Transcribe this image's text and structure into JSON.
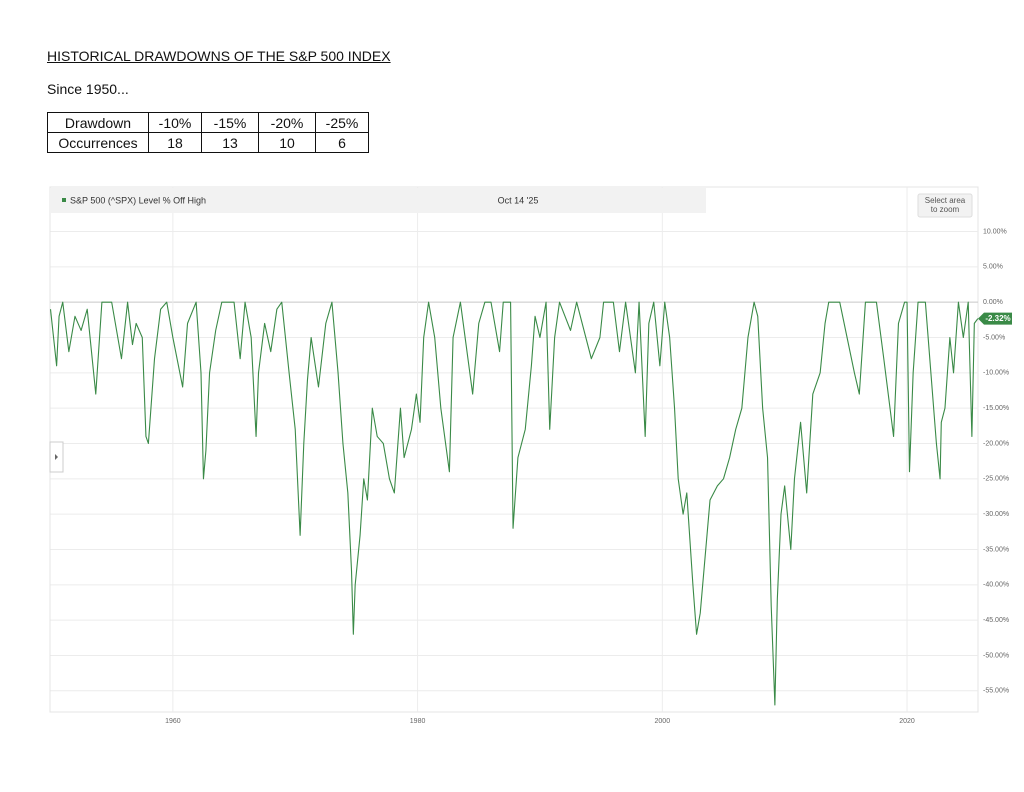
{
  "header": {
    "title": "HISTORICAL DRAWDOWNS OF THE S&P 500 INDEX",
    "subtitle": "Since 1950..."
  },
  "table": {
    "rows": [
      [
        "Drawdown",
        "-10%",
        "-15%",
        "-20%",
        "-25%"
      ],
      [
        "Occurrences",
        18,
        13,
        10,
        6
      ]
    ]
  },
  "chart_data": {
    "type": "line",
    "date_label": "Oct 14 '25",
    "zoom_hint": "Select area to zoom",
    "current_label": "-2.32%",
    "x": [
      1950.0,
      1950.5,
      1950.7,
      1951.0,
      1951.5,
      1952.0,
      1952.5,
      1953.0,
      1953.7,
      1954.2,
      1955.0,
      1955.8,
      1956.3,
      1956.7,
      1957.0,
      1957.5,
      1957.8,
      1958.0,
      1958.5,
      1959.0,
      1959.5,
      1960.0,
      1960.8,
      1961.2,
      1961.9,
      1962.3,
      1962.5,
      1962.7,
      1963.0,
      1963.5,
      1964.0,
      1965.0,
      1965.5,
      1965.9,
      1966.4,
      1966.8,
      1967.0,
      1967.5,
      1968.0,
      1968.5,
      1968.9,
      1969.5,
      1970.0,
      1970.4,
      1970.7,
      1971.0,
      1971.3,
      1971.9,
      1972.5,
      1973.0,
      1973.5,
      1973.9,
      1974.3,
      1974.6,
      1974.75,
      1974.9,
      1975.3,
      1975.6,
      1975.9,
      1976.3,
      1976.7,
      1977.2,
      1977.7,
      1978.1,
      1978.6,
      1978.9,
      1979.5,
      1979.9,
      1980.2,
      1980.5,
      1980.9,
      1981.4,
      1981.9,
      1982.6,
      1982.9,
      1983.5,
      1984.5,
      1985.0,
      1985.5,
      1986.0,
      1986.7,
      1987.0,
      1987.6,
      1987.8,
      1988.2,
      1988.8,
      1989.3,
      1989.6,
      1990.0,
      1990.5,
      1990.8,
      1991.2,
      1991.6,
      1992.5,
      1993.0,
      1994.2,
      1994.9,
      1995.2,
      1996.0,
      1996.5,
      1997.0,
      1997.8,
      1998.1,
      1998.6,
      1998.9,
      1999.3,
      1999.8,
      2000.2,
      2000.6,
      2001.0,
      2001.3,
      2001.7,
      2002.0,
      2002.5,
      2002.8,
      2003.1,
      2003.5,
      2003.9,
      2004.5,
      2005.0,
      2005.5,
      2006.0,
      2006.5,
      2007.0,
      2007.5,
      2007.8,
      2008.2,
      2008.6,
      2008.9,
      2009.2,
      2009.4,
      2009.7,
      2010.0,
      2010.5,
      2010.8,
      2011.3,
      2011.8,
      2012.3,
      2012.9,
      2013.3,
      2013.6,
      2014.5,
      2015.7,
      2016.1,
      2016.6,
      2017.5,
      2018.1,
      2018.9,
      2019.3,
      2019.8,
      2020.0,
      2020.2,
      2020.5,
      2020.9,
      2021.5,
      2022.4,
      2022.7,
      2022.8,
      2023.1,
      2023.5,
      2023.8,
      2024.2,
      2024.6,
      2025.0,
      2025.3,
      2025.5,
      2025.79
    ],
    "series": [
      {
        "name": "S&P 500 (^SPX) Level % Off High",
        "color": "#3a8a47",
        "values": [
          -1,
          -9,
          -2,
          0,
          -7,
          -2,
          -4,
          -1,
          -13,
          0,
          0,
          -8,
          0,
          -6,
          -3,
          -5,
          -19,
          -20,
          -8,
          -1,
          0,
          -5,
          -12,
          -3,
          0,
          -10,
          -25,
          -21,
          -10,
          -4,
          0,
          0,
          -8,
          0,
          -5,
          -19,
          -10,
          -3,
          -7,
          -1,
          0,
          -10,
          -18,
          -33,
          -20,
          -11,
          -5,
          -12,
          -3,
          0,
          -10,
          -20,
          -27,
          -38,
          -47,
          -40,
          -33,
          -25,
          -28,
          -15,
          -19,
          -20,
          -25,
          -27,
          -15,
          -22,
          -18,
          -13,
          -17,
          -5,
          0,
          -5,
          -15,
          -24,
          -5,
          0,
          -13,
          -3,
          0,
          0,
          -7,
          0,
          0,
          -32,
          -22,
          -18,
          -9,
          -2,
          -5,
          0,
          -18,
          -5,
          0,
          -4,
          0,
          -8,
          -5,
          0,
          0,
          -7,
          0,
          -10,
          0,
          -19,
          -3,
          0,
          -9,
          0,
          -5,
          -15,
          -25,
          -30,
          -27,
          -40,
          -47,
          -44,
          -36,
          -28,
          -26,
          -25,
          -22,
          -18,
          -15,
          -5,
          0,
          -2,
          -15,
          -22,
          -43,
          -57,
          -42,
          -30,
          -26,
          -35,
          -25,
          -17,
          -27,
          -13,
          -10,
          -3,
          0,
          0,
          -10,
          -13,
          0,
          0,
          -8,
          -19,
          -3,
          0,
          0,
          -24,
          -10,
          0,
          0,
          -20,
          -25,
          -17,
          -15,
          -5,
          -10,
          0,
          -5,
          0,
          -19,
          -3,
          -2.32
        ]
      }
    ],
    "xlim": [
      1950,
      2025.8
    ],
    "xticks": [
      1960,
      1980,
      2000,
      2020
    ],
    "ylim": [
      -58,
      16.3
    ],
    "yticks": [
      {
        "value": 10,
        "label": "10.00%"
      },
      {
        "value": 5,
        "label": "5.00%"
      },
      {
        "value": 0,
        "label": "0.00%"
      },
      {
        "value": -5,
        "label": "-5.00%"
      },
      {
        "value": -10,
        "label": "-10.00%"
      },
      {
        "value": -15,
        "label": "-15.00%"
      },
      {
        "value": -20,
        "label": "-20.00%"
      },
      {
        "value": -25,
        "label": "-25.00%"
      },
      {
        "value": -30,
        "label": "-30.00%"
      },
      {
        "value": -35,
        "label": "-35.00%"
      },
      {
        "value": -40,
        "label": "-40.00%"
      },
      {
        "value": -45,
        "label": "-45.00%"
      },
      {
        "value": -50,
        "label": "-50.00%"
      },
      {
        "value": -55,
        "label": "-55.00%"
      }
    ],
    "grid": true
  }
}
